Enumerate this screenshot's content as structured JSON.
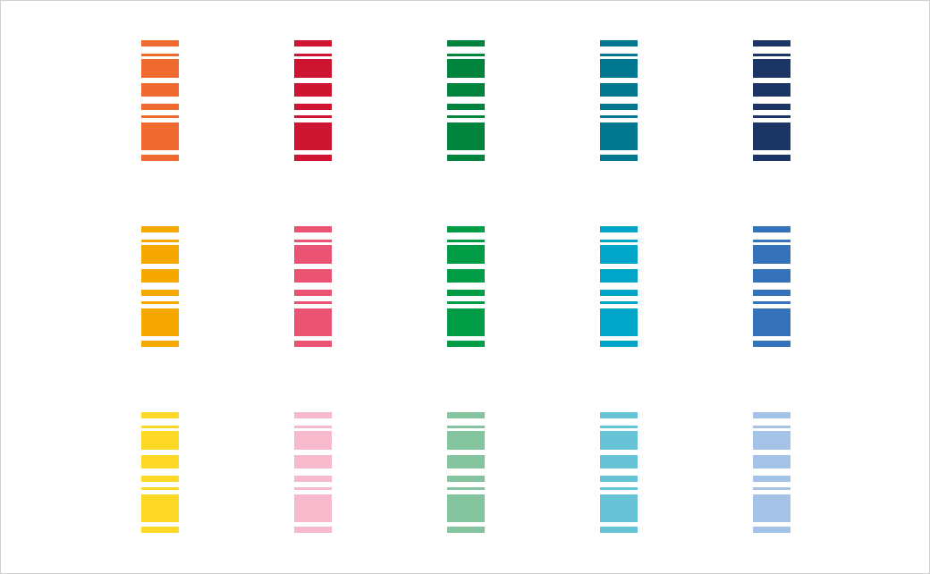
{
  "palette": {
    "rows": [
      [
        "#ee6a2e",
        "#cd1430",
        "#00843d",
        "#00778f",
        "#1b3665"
      ],
      [
        "#f6a800",
        "#eb5375",
        "#009c46",
        "#00a5c8",
        "#3572b9"
      ],
      [
        "#fdd826",
        "#f7b9cc",
        "#84c5a0",
        "#67c4d6",
        "#a5c3e7"
      ]
    ]
  }
}
